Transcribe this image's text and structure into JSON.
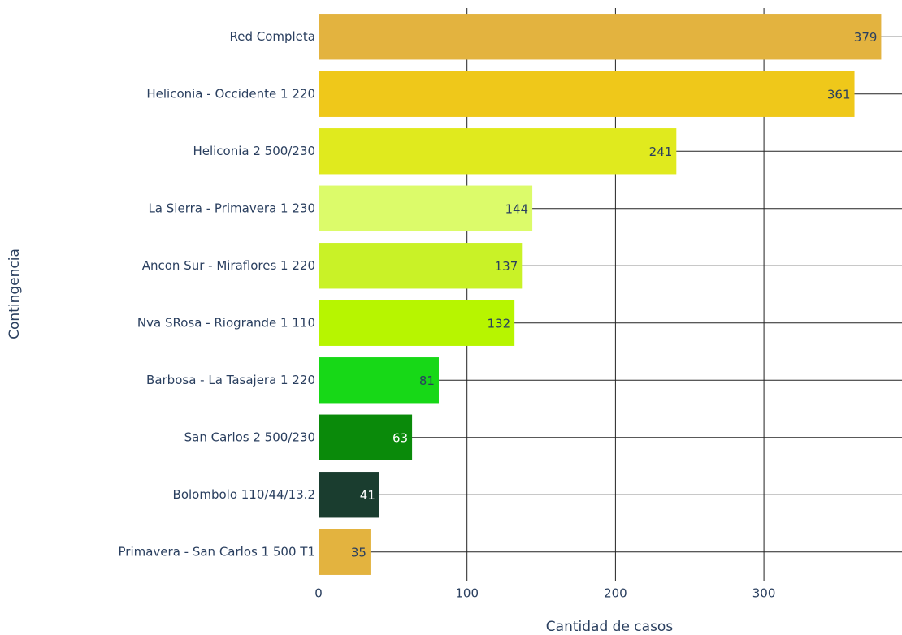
{
  "chart_data": {
    "type": "barh",
    "xlabel": "Cantidad de casos",
    "ylabel": "Contingencia",
    "categories": [
      "Red Completa",
      "Heliconia - Occidente 1 220",
      "Heliconia 2 500/230",
      "La Sierra - Primavera 1 230",
      "Ancon Sur - Miraflores 1 220",
      "Nva SRosa - Riogrande 1 110",
      "Barbosa - La Tasajera 1 220",
      "San Carlos 2 500/230",
      "Bolombolo 110/44/13.2",
      "Primavera - San Carlos 1 500 T1"
    ],
    "values": [
      379,
      361,
      241,
      144,
      137,
      132,
      81,
      63,
      41,
      35
    ],
    "colors": [
      "#e3b33f",
      "#efc81a",
      "#e0ea1e",
      "#dcfb6a",
      "#c9f227",
      "#b7f500",
      "#17d817",
      "#0a8a0a",
      "#1a3d2f",
      "#e3b33f"
    ],
    "value_label_colors": [
      "#2a3f5f",
      "#2a3f5f",
      "#2a3f5f",
      "#2a3f5f",
      "#2a3f5f",
      "#2a3f5f",
      "#2a3f5f",
      "#ffffff",
      "#ffffff",
      "#2a3f5f"
    ],
    "xlim": [
      0,
      393
    ],
    "xticks": [
      0,
      100,
      200,
      300
    ],
    "grid": true
  }
}
